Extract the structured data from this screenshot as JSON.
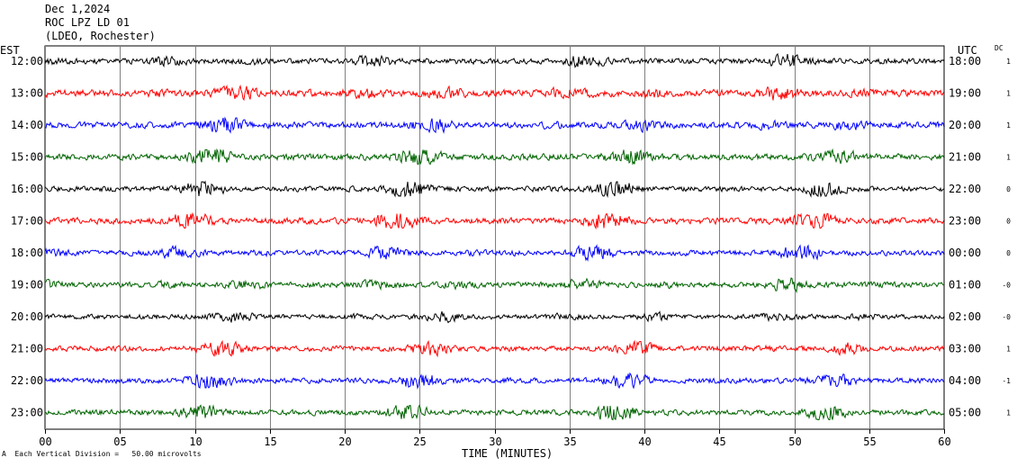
{
  "header": {
    "date": "Dec 1,2024",
    "station": "ROC LPZ LD 01",
    "location": "(LDEO, Rochester)"
  },
  "left_axis_title": "EST",
  "right_axis_title": "UTC",
  "dc_title": "DC",
  "footer": {
    "corner_mark": "A",
    "scale_text": "Each Vertical Division =   50.00 microvolts"
  },
  "colors": {
    "black": "#000000",
    "red": "#ff0000",
    "blue": "#0000ff",
    "green": "#006400",
    "grid": "#000000"
  },
  "chart_data": {
    "type": "line",
    "title": "ROC LPZ LD 01",
    "xlabel": "TIME (MINUTES)",
    "ylabel": "",
    "xlim": [
      0,
      60
    ],
    "x_ticks": [
      "00",
      "05",
      "10",
      "15",
      "20",
      "25",
      "30",
      "35",
      "40",
      "45",
      "50",
      "55",
      "60"
    ],
    "series": [
      {
        "est": "12:00",
        "utc": "18:00",
        "dc": "1",
        "color": "#000000",
        "amplitude": 0.35
      },
      {
        "est": "13:00",
        "utc": "19:00",
        "dc": "1",
        "color": "#ff0000",
        "amplitude": 0.45
      },
      {
        "est": "14:00",
        "utc": "20:00",
        "dc": "1",
        "color": "#0000ff",
        "amplitude": 0.4
      },
      {
        "est": "15:00",
        "utc": "21:00",
        "dc": "1",
        "color": "#006400",
        "amplitude": 0.4
      },
      {
        "est": "16:00",
        "utc": "22:00",
        "dc": "0",
        "color": "#000000",
        "amplitude": 0.35
      },
      {
        "est": "17:00",
        "utc": "23:00",
        "dc": "0",
        "color": "#ff0000",
        "amplitude": 0.4
      },
      {
        "est": "18:00",
        "utc": "00:00",
        "dc": "0",
        "color": "#0000ff",
        "amplitude": 0.35
      },
      {
        "est": "19:00",
        "utc": "01:00",
        "dc": "-0",
        "color": "#006400",
        "amplitude": 0.35
      },
      {
        "est": "20:00",
        "utc": "02:00",
        "dc": "-0",
        "color": "#000000",
        "amplitude": 0.3
      },
      {
        "est": "21:00",
        "utc": "03:00",
        "dc": "1",
        "color": "#ff0000",
        "amplitude": 0.35
      },
      {
        "est": "22:00",
        "utc": "04:00",
        "dc": "-1",
        "color": "#0000ff",
        "amplitude": 0.35
      },
      {
        "est": "23:00",
        "utc": "05:00",
        "dc": "1",
        "color": "#006400",
        "amplitude": 0.35
      }
    ]
  }
}
